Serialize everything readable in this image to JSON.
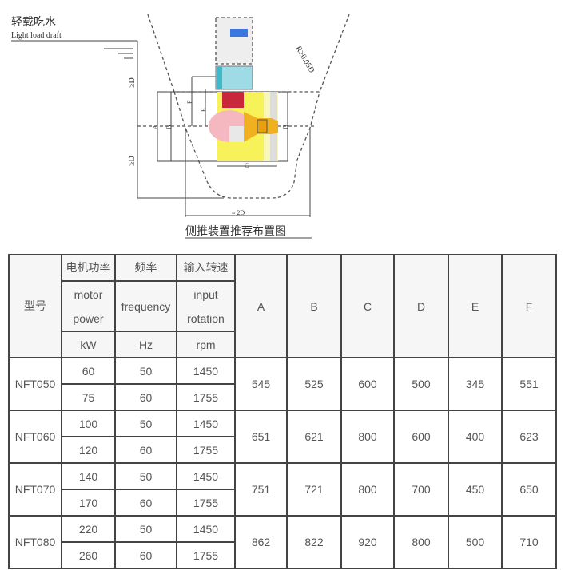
{
  "diagram": {
    "draft_cn": "轻载吃水",
    "draft_en": "Light load draft",
    "caption": "侧推装置推荐布置图",
    "labels": {
      "ge_d_top": "≥D",
      "ge_d_bottom": "≥D",
      "approx_2d": "≈ 2D",
      "radius": "R≥0.05D",
      "A": "A",
      "B": "B",
      "C": "C",
      "D": "D",
      "E": "E",
      "F": "F"
    },
    "colors": {
      "yellow": "#f7f15a",
      "red": "#c8283a",
      "orange": "#f0b020",
      "teal": "#40b8c8",
      "blue": "#3a78e0"
    }
  },
  "table": {
    "header": {
      "model": "型号",
      "power_cn": "电机功率",
      "freq_cn": "频率",
      "speed_cn": "输入转速",
      "power_en1": "motor",
      "power_en2": "power",
      "freq_en": "frequency",
      "speed_en1": "input",
      "speed_en2": "rotation",
      "power_unit": "kW",
      "freq_unit": "Hz",
      "speed_unit": "rpm",
      "dims": [
        "A",
        "B",
        "C",
        "D",
        "E",
        "F"
      ]
    },
    "rows": [
      {
        "model": "NFT050",
        "sub": [
          [
            "60",
            "50",
            "1450"
          ],
          [
            "75",
            "60",
            "1755"
          ]
        ],
        "dims": [
          "545",
          "525",
          "600",
          "500",
          "345",
          "551"
        ]
      },
      {
        "model": "NFT060",
        "sub": [
          [
            "100",
            "50",
            "1450"
          ],
          [
            "120",
            "60",
            "1755"
          ]
        ],
        "dims": [
          "651",
          "621",
          "800",
          "600",
          "400",
          "623"
        ]
      },
      {
        "model": "NFT070",
        "sub": [
          [
            "140",
            "50",
            "1450"
          ],
          [
            "170",
            "60",
            "1755"
          ]
        ],
        "dims": [
          "751",
          "721",
          "800",
          "700",
          "450",
          "650"
        ]
      },
      {
        "model": "NFT080",
        "sub": [
          [
            "220",
            "50",
            "1450"
          ],
          [
            "260",
            "60",
            "1755"
          ]
        ],
        "dims": [
          "862",
          "822",
          "920",
          "800",
          "500",
          "710"
        ]
      }
    ]
  }
}
